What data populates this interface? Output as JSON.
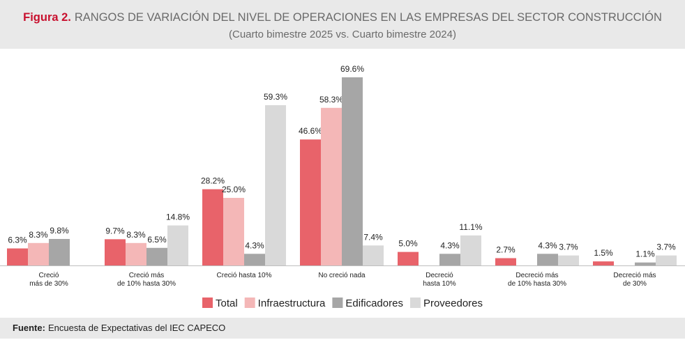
{
  "chart_data": {
    "type": "bar",
    "title_prefix": "Figura 2.",
    "title": "RANGOS DE VARIACIÓN DEL NIVEL DE OPERACIONES EN LAS EMPRESAS DEL SECTOR CONSTRUCCIÓN",
    "subtitle": "(Cuarto bimestre 2025 vs. Cuarto bimestre 2024)",
    "categories": [
      [
        "Creció",
        "más de 30%"
      ],
      [
        "Creció más",
        "de 10% hasta 30%"
      ],
      [
        "Creció hasta 10%"
      ],
      [
        "No creció nada"
      ],
      [
        "Decreció",
        "hasta 10%"
      ],
      [
        "Decreció más",
        "de 10% hasta 30%"
      ],
      [
        "Decreció más",
        "de 30%"
      ]
    ],
    "series": [
      {
        "name": "Total",
        "color": "#e8636a",
        "values": [
          6.3,
          9.7,
          28.2,
          46.6,
          5.0,
          2.7,
          1.5
        ],
        "value_labels": [
          "6.3%",
          "9.7%",
          "28.2%",
          "46.6%",
          "5.0%",
          "2.7%",
          "1.5%"
        ]
      },
      {
        "name": "Infraestructura",
        "color": "#f4b7b7",
        "values": [
          8.3,
          8.3,
          25.0,
          58.3,
          null,
          null,
          null
        ],
        "value_labels": [
          "8.3%",
          "8.3%",
          "25.0%",
          "58.3%",
          null,
          null,
          null
        ]
      },
      {
        "name": "Edificadores",
        "color": "#a6a6a6",
        "values": [
          9.8,
          6.5,
          4.3,
          69.6,
          4.3,
          4.3,
          1.1
        ],
        "value_labels": [
          "9.8%",
          "6.5%",
          "4.3%",
          "69.6%",
          "4.3%",
          "4.3%",
          "1.1%"
        ]
      },
      {
        "name": "Proveedores",
        "color": "#d9d9d9",
        "values": [
          null,
          14.8,
          59.3,
          7.4,
          11.1,
          3.7,
          3.7
        ],
        "value_labels": [
          null,
          "14.8%",
          "59.3%",
          "7.4%",
          "11.1%",
          "3.7%",
          "3.7%"
        ]
      }
    ],
    "source_label": "Fuente:",
    "source": "Encuesta de Expectativas del IEC CAPECO"
  }
}
